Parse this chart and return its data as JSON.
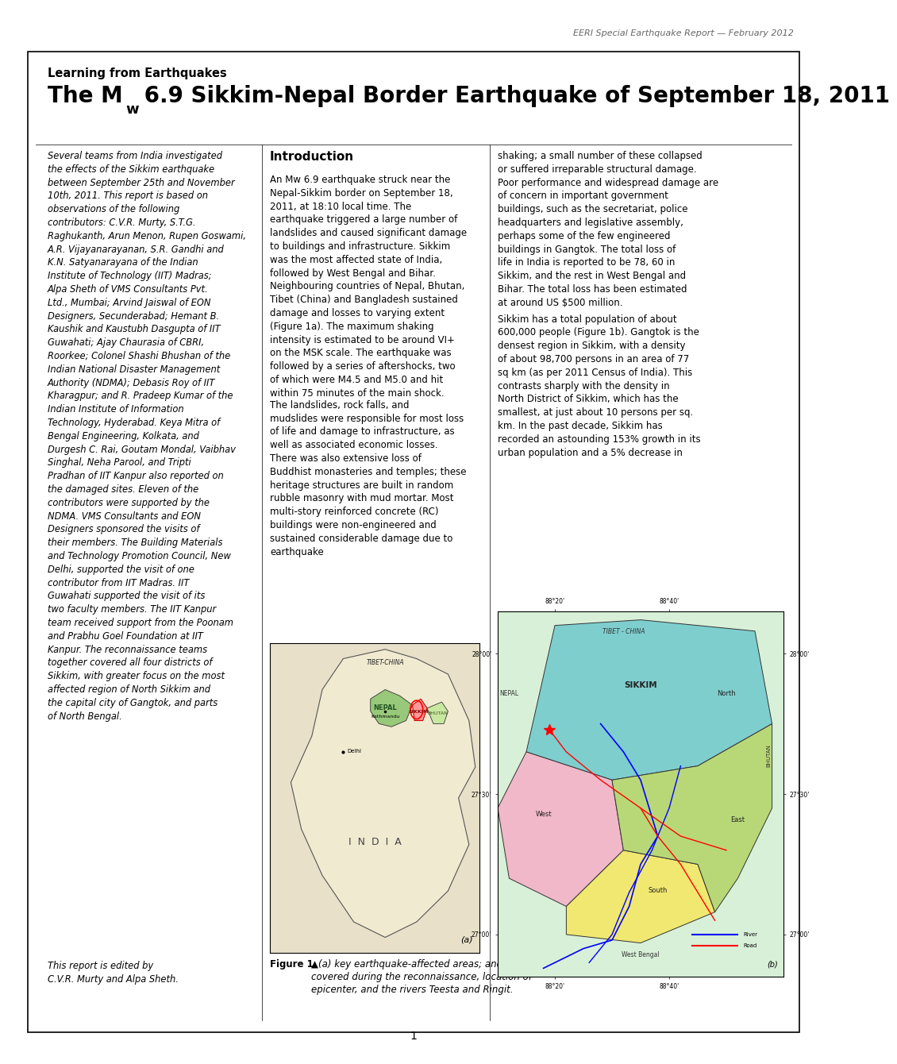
{
  "header_text": "EERI Special Earthquake Report — February 2012",
  "learning_label": "Learning from Earthquakes",
  "title_text": "The M",
  "title_w": "w",
  "title_suffix": " 6.9 Sikkim-Nepal Border Earthquake of September 18, 2011",
  "col1_text": "Several teams from India investigated the effects of the Sikkim earthquake between September 25th and November 10th, 2011. This report is based on observations of the following contributors: C.V.R. Murty, S.T.G. Raghukanth, Arun Menon, Rupen Goswami, A.R. Vijayanarayanan, S.R. Gandhi and K.N. Satyanarayana of the Indian Institute of Technology (IIT) Madras; Alpa Sheth of VMS Consultants Pvt. Ltd., Mumbai; Arvind Jaiswal of EON Designers, Secunderabad; Hemant B. Kaushik and Kaustubh Dasgupta of IIT Guwahati; Ajay Chaurasia of CBRI, Roorkee; Colonel Shashi Bhushan of the Indian National Disaster Management Authority (NDMA); Debasis Roy of IIT Kharagpur; and R. Pradeep Kumar of the Indian Institute of Information Technology, Hyderabad. Keya Mitra of Bengal Engineering, Kolkata, and Durgesh C. Rai, Goutam Mondal, Vaibhav Singhal, Neha Parool, and Tripti Pradhan of IIT Kanpur also reported on the damaged sites. Eleven of the contributors were supported by the NDMA. VMS Consultants and EON Designers sponsored the visits of their members. The Building Materials and Technology Promotion Council, New Delhi, supported the visit of one contributor from IIT Madras. IIT Guwahati supported the visit of its two faculty members. The IIT Kanpur team received support from the Poonam and Prabhu Goel Foundation at IIT Kanpur. The reconnaissance teams together covered all four districts of Sikkim, with greater focus on the most affected region of North Sikkim and the capital city of Gangtok, and parts of North Bengal.",
  "col1_end": "This report is edited by\nC.V.R. Murty and Alpa Sheth.",
  "col2_header": "Introduction",
  "col2_para1": "An Mw 6.9 earthquake struck near the Nepal-Sikkim border on September 18, 2011, at 18:10 local time. The earthquake triggered a large number of landslides and caused significant damage to buildings and infrastructure. Sikkim was the most affected state of India, followed by West Bengal and Bihar. Neighbouring countries of Nepal, Bhutan, Tibet (China) and Bangladesh sustained damage and losses to varying extent (Figure 1a). The maximum shaking intensity is estimated to be around VI+ on the MSK scale. The earthquake was followed by a series of aftershocks, two of which were M4.5 and M5.0 and hit within 75 minutes of the main shock.",
  "col2_para2": "The landslides, rock falls, and mudslides were responsible for most loss of life and damage to infrastructure, as well as associated economic losses. There was also extensive loss of Buddhist monasteries and temples; these heritage structures are built in random rubble masonry with mud mortar. Most multi-story reinforced concrete (RC) buildings were non-engineered and sustained considerable damage due to earthquake",
  "col3_para1": "shaking; a small number of these collapsed or suffered irreparable structural damage. Poor performance and widespread damage are of concern in important government buildings, such as the secretariat, police headquarters and legislative assembly, perhaps some of the few engineered buildings in Gangtok. The total loss of life in India is reported to be 78, 60 in Sikkim, and the rest in West Bengal and Bihar. The total loss has been estimated at around US $500 million.",
  "col3_para2": "Sikkim has a total population of about 600,000 people (Figure 1b). Gangtok is the densest region in Sikkim, with a density of about 98,700 persons in an area of 77 sq km (as per 2011 Census of India). This contrasts sharply with the density in North District of Sikkim, which has the smallest, at just about 10 persons per sq. km. In the past decade, Sikkim has recorded an astounding 153% growth in its urban population and a 5% decrease in",
  "fig_caption_bold": "Figure 1.",
  "fig_caption_text": "  ▲(a) key earthquake-affected areas; and ► (b) areas covered during the reconnaissance, location of epicenter, and the rivers Teesta and Ringit.",
  "page_num": "1",
  "border_color": "#000000",
  "bg_color": "#ffffff",
  "header_gray": "#666666"
}
